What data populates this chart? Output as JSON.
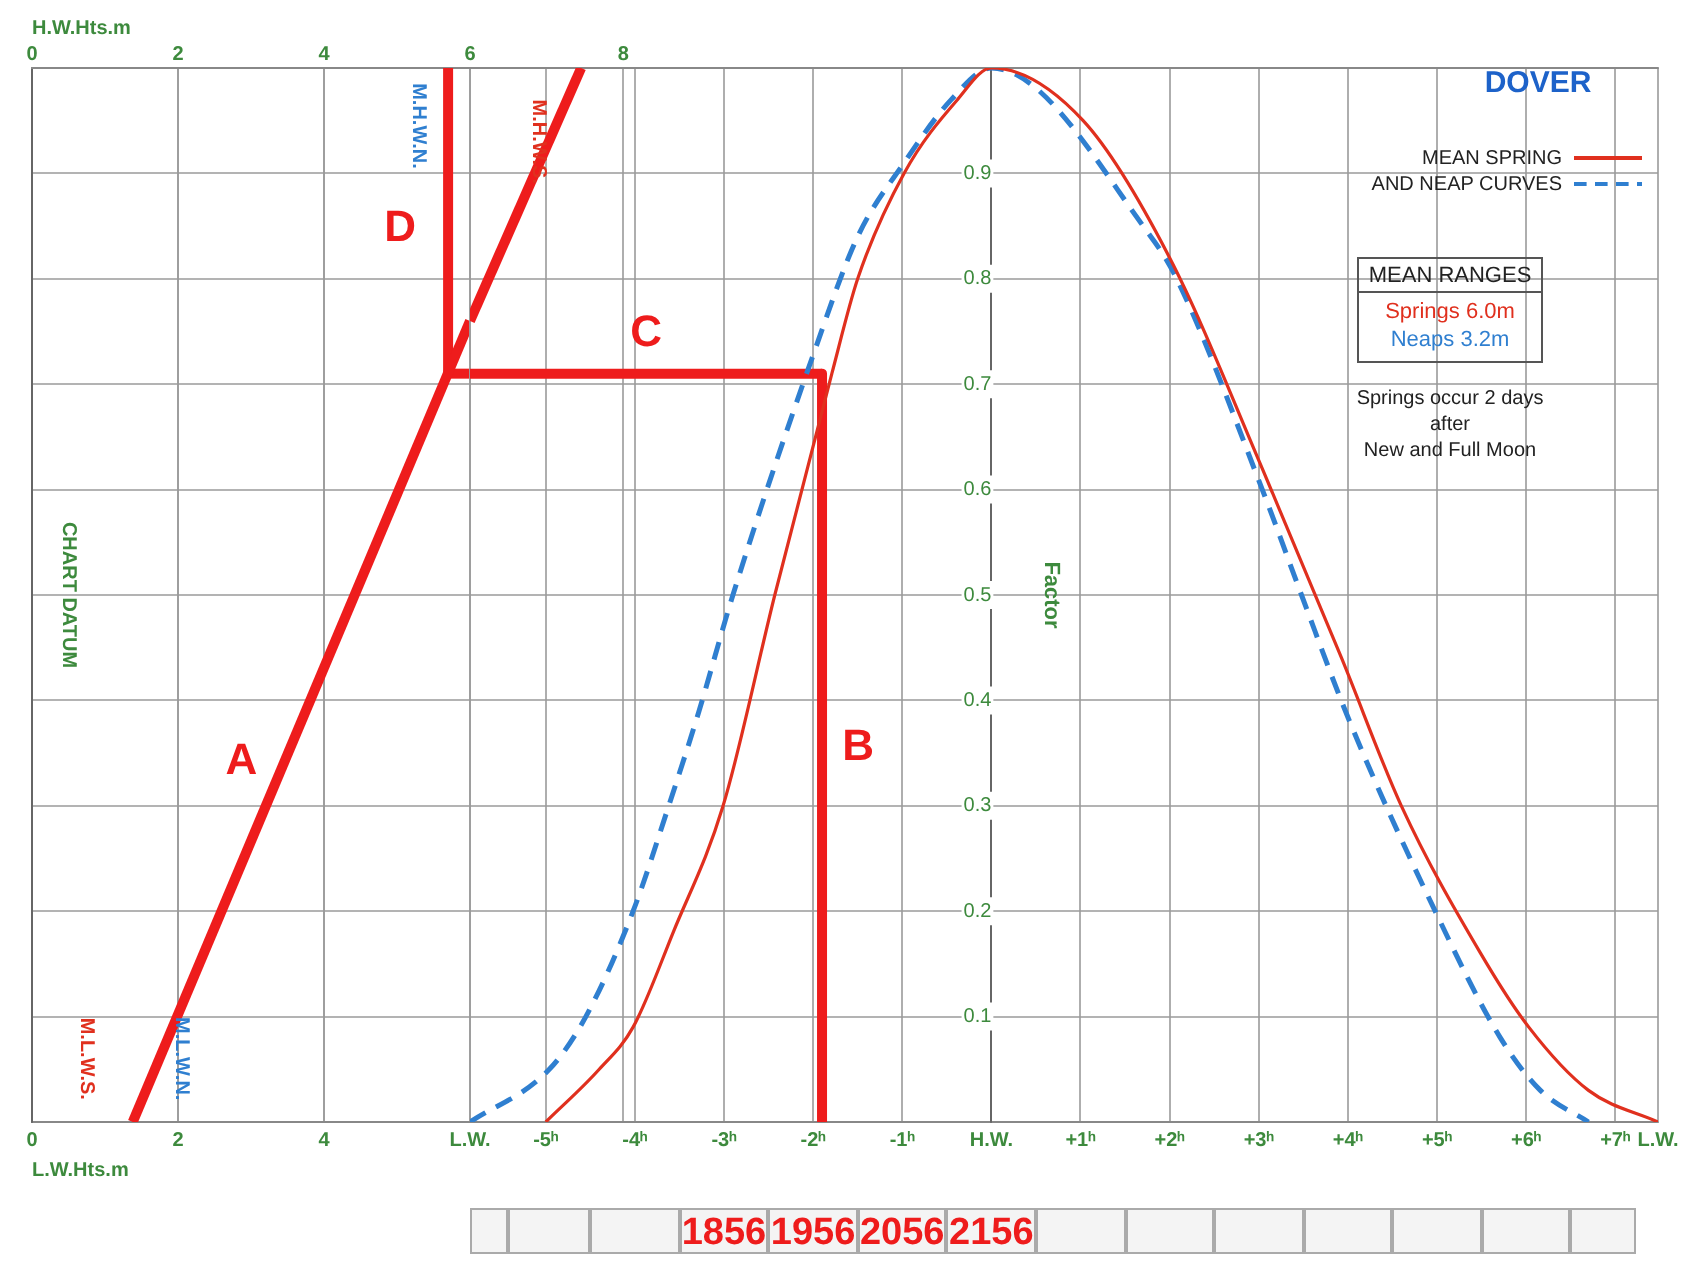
{
  "chart_data": [
    {
      "type": "line",
      "xlabel": "L.W.Hts.m",
      "x2label": "H.W.Hts.m",
      "xlim": [
        0,
        6.0
      ],
      "xticks": [
        0,
        2,
        4
      ],
      "x2lim": [
        0,
        6.0
      ],
      "x2ticks": [
        0,
        2,
        4
      ],
      "ylim": [
        0,
        1
      ],
      "yticks": [
        0.1,
        0.2,
        0.3,
        0.4,
        0.5,
        0.6,
        0.7,
        0.8,
        0.9
      ],
      "tick_labels": "x",
      "grid": true,
      "series": [
        {
          "name": "A",
          "color": "#ee1c1c",
          "x": [
            1.38,
            6.0
          ],
          "values": [
            0,
            0.76
          ]
        },
        {
          "color": "#ee1c1c",
          "x": [
            5.7,
            6.0
          ],
          "values": [
            0.71,
            0.71
          ]
        },
        {
          "name": "D",
          "color": "#ee1c1c",
          "x": [
            5.7,
            5.7
          ],
          "values": [
            0.71,
            1
          ]
        }
      ],
      "annotations": [
        "CHART DATUM",
        "M.H.W.N.",
        "M.L.W.S.",
        "M.L.W.N."
      ]
    },
    {
      "type": "line",
      "title": "DOVER",
      "ylabel": "Factor",
      "xlim": [
        -5.85,
        7.48
      ],
      "xticks": [
        {
          "value": -5.85,
          "label": "L.W."
        },
        {
          "value": -5,
          "label": "-5ʰ"
        },
        {
          "value": -4,
          "label": "-4ʰ"
        },
        {
          "value": -3,
          "label": "-3ʰ"
        },
        {
          "value": -2,
          "label": "-2ʰ"
        },
        {
          "value": -1,
          "label": "-1ʰ"
        },
        {
          "value": 0,
          "label": "H.W."
        },
        {
          "value": 1,
          "label": "+1ʰ"
        },
        {
          "value": 2,
          "label": "+2ʰ"
        },
        {
          "value": 3,
          "label": "+3ʰ"
        },
        {
          "value": 4,
          "label": "+4ʰ"
        },
        {
          "value": 5,
          "label": "+5ʰ"
        },
        {
          "value": 6,
          "label": "+6ʰ"
        },
        {
          "value": 7,
          "label": "+7ʰ"
        },
        {
          "value": 7.48,
          "label": "L.W."
        }
      ],
      "x2lim": [
        6.0,
        21.5
      ],
      "x2ticks": [
        6,
        8
      ],
      "ylim": [
        0,
        1
      ],
      "yticks": [
        0.1,
        0.2,
        0.3,
        0.4,
        0.5,
        0.6,
        0.7,
        0.8,
        0.9
      ],
      "grid": true,
      "legend": "top right",
      "series": [
        {
          "name": "MEAN SPRING",
          "color": "#e0301e",
          "line_style": "solid",
          "x": [
            -5.0,
            -4.4,
            -4.02,
            -3.57,
            -3.01,
            -2.43,
            -1.79,
            -1.5,
            -0.98,
            -0.38,
            0,
            1.03,
            2.0,
            3.04,
            3.93,
            4.6,
            5.49,
            6.03,
            6.7,
            7.48
          ],
          "values": [
            0,
            0.05,
            0.09,
            0.18,
            0.3,
            0.5,
            0.71,
            0.8,
            0.9,
            0.97,
            1,
            0.95,
            0.82,
            0.62,
            0.44,
            0.3,
            0.16,
            0.09,
            0.03,
            0
          ]
        },
        {
          "name": "AND NEAP CURVES",
          "color": "#2f7fd0",
          "line_style": "dashed",
          "x": [
            -5.85,
            -4.96,
            -4.55,
            -4.02,
            -3.62,
            -3.28,
            -2.9,
            -1.99,
            -1.5,
            -0.98,
            -0.45,
            0,
            1.79,
            2.08,
            3.04,
            3.48,
            4.02,
            4.98,
            5.71,
            6.16,
            6.7
          ],
          "values": [
            0,
            0.05,
            0.1,
            0.2,
            0.3,
            0.39,
            0.5,
            0.73,
            0.84,
            0.91,
            0.97,
            1,
            0.84,
            0.8,
            0.6,
            0.5,
            0.38,
            0.2,
            0.08,
            0.03,
            0
          ]
        },
        {
          "axis": "x2",
          "color": "#ee1c1c",
          "x": [
            6.0,
            7.45
          ],
          "values": [
            0.76,
            1
          ]
        },
        {
          "name": "B",
          "color": "#ee1c1c",
          "x": [
            -1.9,
            -1.9
          ],
          "values": [
            0.71,
            0
          ]
        },
        {
          "name": "C",
          "color": "#ee1c1c",
          "x": [
            -5.85,
            -1.9
          ],
          "values": [
            0.71,
            0.71
          ]
        }
      ],
      "annotations": [
        "M.H.W.S.",
        "MEAN RANGES",
        "Springs 6.0m",
        "Neaps 3.2m",
        "Springs occur 2 days",
        "after",
        "New and Full Moon",
        "1856",
        "1956",
        "2056",
        "2156"
      ]
    }
  ]
}
